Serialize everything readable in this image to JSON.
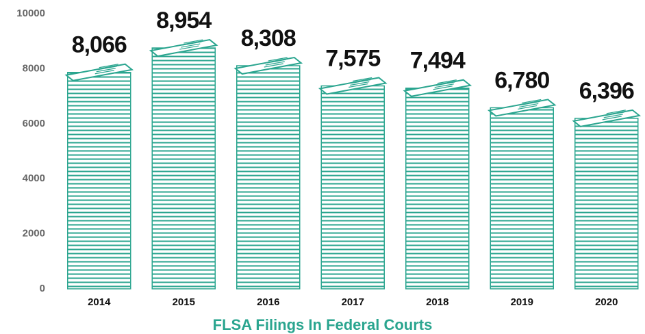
{
  "chart_data": {
    "type": "bar",
    "title": "FLSA Filings In Federal Courts",
    "categories": [
      "2014",
      "2015",
      "2016",
      "2017",
      "2018",
      "2019",
      "2020"
    ],
    "values": [
      8066,
      8954,
      8308,
      7575,
      7494,
      6780,
      6396
    ],
    "value_labels": [
      "8,066",
      "8,954",
      "8,308",
      "7,575",
      "7,494",
      "6,780",
      "6,396"
    ],
    "color": "#2aa58f",
    "ylim": [
      0,
      10000
    ],
    "yticks": [
      0,
      2000,
      4000,
      6000,
      8000,
      10000
    ],
    "grid": false
  }
}
